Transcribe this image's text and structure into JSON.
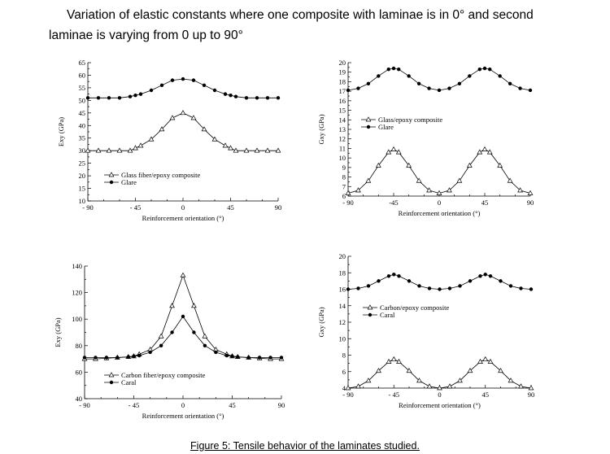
{
  "heading": {
    "line1": "Variation of elastic constants where one composite with laminae is in 0° and second",
    "line2": "laminae is varying from 0 up to 90°"
  },
  "caption": "Figure 5: Tensile behavior of the laminates studied.",
  "chart_data": [
    {
      "type": "line",
      "xlabel": "Reinforcement orientation (°)",
      "ylabel": "Exy (GPa)",
      "xlim": [
        -90,
        90
      ],
      "ylim": [
        10,
        65
      ],
      "xticks": [
        -90,
        -45,
        0,
        45,
        90
      ],
      "xtick_labels": [
        "- 90",
        "- 45",
        "0",
        "45",
        "90"
      ],
      "yticks": [
        10,
        15,
        20,
        25,
        30,
        35,
        40,
        45,
        50,
        55,
        60,
        65
      ],
      "legend_position": "bottom-left",
      "x": [
        -90,
        -80,
        -70,
        -60,
        -50,
        -45,
        -40,
        -30,
        -20,
        -10,
        0,
        10,
        20,
        30,
        40,
        45,
        50,
        60,
        70,
        80,
        90
      ],
      "series": [
        {
          "name": "Glass fiber/epoxy composite",
          "marker": "open-triangle",
          "values": [
            30,
            30,
            30,
            30,
            30,
            31,
            32,
            34.5,
            38.5,
            43,
            45,
            43,
            38.5,
            34.5,
            32,
            31,
            30,
            30,
            30,
            30,
            30
          ]
        },
        {
          "name": "Glare",
          "marker": "filled-circle",
          "values": [
            51,
            51,
            51,
            51,
            51.5,
            52,
            52.5,
            54,
            56,
            58,
            58.5,
            58,
            56,
            54,
            52.5,
            52,
            51.5,
            51,
            51,
            51,
            51
          ]
        }
      ]
    },
    {
      "type": "line",
      "xlabel": "Reinforcement orientation (°)",
      "ylabel": "Gxy (GPa)",
      "xlim": [
        -90,
        90
      ],
      "ylim": [
        6,
        20
      ],
      "xticks": [
        -90,
        -45,
        0,
        45,
        90
      ],
      "xtick_labels": [
        "- 90",
        "-45",
        "0",
        "45",
        "90"
      ],
      "yticks": [
        6,
        7,
        8,
        9,
        10,
        11,
        12,
        13,
        14,
        15,
        16,
        17,
        18,
        19,
        20
      ],
      "legend_position": "middle-right",
      "x": [
        -90,
        -80,
        -70,
        -60,
        -50,
        -45,
        -40,
        -30,
        -20,
        -10,
        0,
        10,
        20,
        30,
        40,
        45,
        50,
        60,
        70,
        80,
        90
      ],
      "series": [
        {
          "name": "Glass/epoxy composite",
          "marker": "open-triangle",
          "values": [
            6.3,
            6.6,
            7.6,
            9.2,
            10.6,
            10.9,
            10.6,
            9.2,
            7.6,
            6.6,
            6.3,
            6.6,
            7.6,
            9.2,
            10.6,
            10.9,
            10.6,
            9.2,
            7.6,
            6.6,
            6.3
          ]
        },
        {
          "name": "Glare",
          "marker": "filled-circle",
          "values": [
            17.1,
            17.3,
            17.8,
            18.6,
            19.3,
            19.4,
            19.3,
            18.6,
            17.8,
            17.3,
            17.1,
            17.3,
            17.8,
            18.6,
            19.3,
            19.4,
            19.3,
            18.6,
            17.8,
            17.3,
            17.1
          ]
        }
      ]
    },
    {
      "type": "line",
      "xlabel": "Reinforcement orientation (°)",
      "ylabel": "Exy (GPa)",
      "xlim": [
        -90,
        90
      ],
      "ylim": [
        40,
        140
      ],
      "xticks": [
        -90,
        -45,
        0,
        45,
        90
      ],
      "xtick_labels": [
        "- 90",
        "- 45",
        "0",
        "45",
        "90"
      ],
      "yticks": [
        40,
        60,
        80,
        100,
        120,
        140
      ],
      "legend_position": "bottom-left",
      "x": [
        -90,
        -80,
        -70,
        -60,
        -50,
        -45,
        -40,
        -30,
        -20,
        -10,
        0,
        10,
        20,
        30,
        40,
        45,
        50,
        60,
        70,
        80,
        90
      ],
      "series": [
        {
          "name": "Carbon fiber/epoxy composite",
          "marker": "open-triangle",
          "values": [
            70,
            70,
            70.5,
            71,
            71.5,
            72,
            73.5,
            77,
            87,
            110,
            133,
            110,
            87,
            77,
            73.5,
            72,
            71.5,
            71,
            70.5,
            70,
            70
          ]
        },
        {
          "name": "Caral",
          "marker": "filled-circle",
          "values": [
            71,
            71,
            71,
            71,
            71.5,
            72,
            72.5,
            75,
            80,
            90,
            102,
            90,
            80,
            75,
            72.5,
            72,
            71.5,
            71,
            71,
            71,
            71
          ]
        }
      ]
    },
    {
      "type": "line",
      "xlabel": "Reinforcement orientation (°)",
      "ylabel": "Gxy (GPa)",
      "xlim": [
        -90,
        90
      ],
      "ylim": [
        4,
        20
      ],
      "xticks": [
        -90,
        -45,
        0,
        45,
        90
      ],
      "xtick_labels": [
        "- 90",
        "- 45",
        "0",
        "45",
        "90"
      ],
      "yticks": [
        4,
        6,
        8,
        10,
        12,
        14,
        16,
        18,
        20
      ],
      "legend_position": "middle-right",
      "x": [
        -90,
        -80,
        -70,
        -60,
        -50,
        -45,
        -40,
        -30,
        -20,
        -10,
        0,
        10,
        20,
        30,
        40,
        45,
        50,
        60,
        70,
        80,
        90
      ],
      "series": [
        {
          "name": "Carbon/epoxy composite",
          "marker": "open-triangle",
          "values": [
            4,
            4.2,
            4.9,
            6.1,
            7.2,
            7.5,
            7.2,
            6.1,
            4.9,
            4.2,
            4,
            4.2,
            4.9,
            6.1,
            7.2,
            7.5,
            7.2,
            6.1,
            4.9,
            4.2,
            4
          ]
        },
        {
          "name": "Caral",
          "marker": "filled-circle",
          "values": [
            16,
            16.1,
            16.4,
            17,
            17.6,
            17.8,
            17.6,
            17,
            16.4,
            16.1,
            16,
            16.1,
            16.4,
            17,
            17.6,
            17.8,
            17.6,
            17,
            16.4,
            16.1,
            16
          ]
        }
      ]
    }
  ]
}
